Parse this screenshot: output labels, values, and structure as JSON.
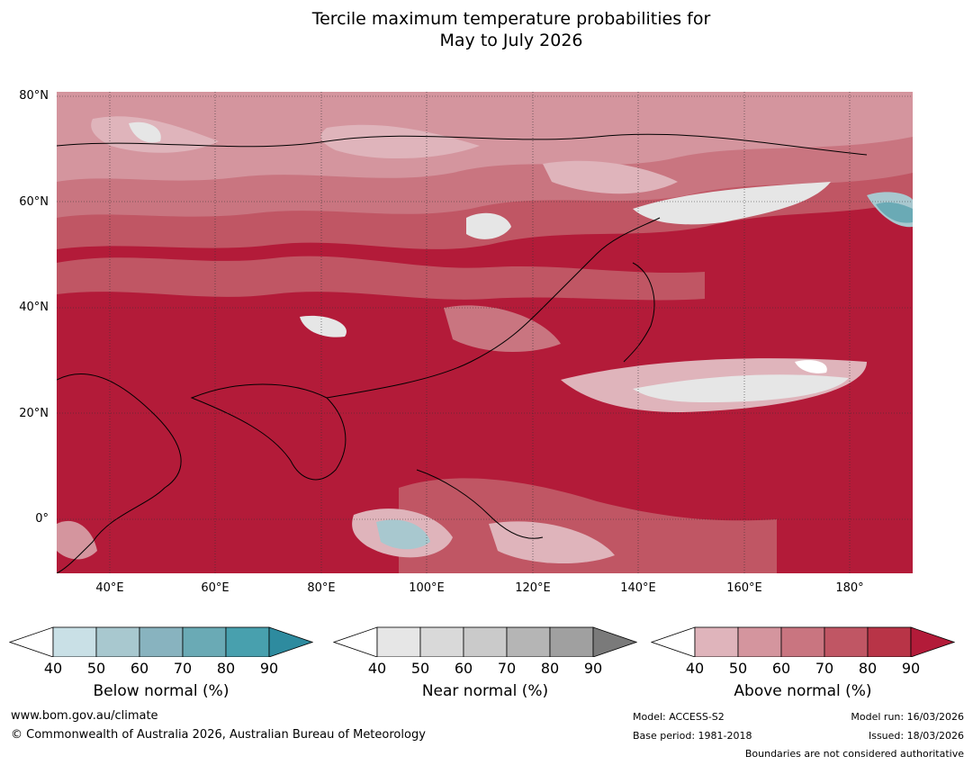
{
  "title_line1": "Tercile maximum temperature probabilities for",
  "title_line2": "May to July 2026",
  "lat_labels": [
    "80°N",
    "60°N",
    "40°N",
    "20°N",
    "0°"
  ],
  "lon_labels": [
    "40°E",
    "60°E",
    "80°E",
    "100°E",
    "120°E",
    "140°E",
    "160°E",
    "180°"
  ],
  "colorbars": [
    {
      "label": "Below normal (%)",
      "ticks": [
        "40",
        "50",
        "60",
        "70",
        "80",
        "90"
      ],
      "colors": [
        "#ffffff",
        "#c9e0e6",
        "#a8c8cf",
        "#88b3bf",
        "#6aaab5",
        "#48a0ae",
        "#2e8b9f"
      ]
    },
    {
      "label": "Near normal (%)",
      "ticks": [
        "40",
        "50",
        "60",
        "70",
        "80",
        "90"
      ],
      "colors": [
        "#ffffff",
        "#e6e6e6",
        "#d9d9d9",
        "#cacaca",
        "#b5b5b5",
        "#a0a0a0",
        "#7a7a7a"
      ]
    },
    {
      "label": "Above normal (%)",
      "ticks": [
        "40",
        "50",
        "60",
        "70",
        "80",
        "90"
      ],
      "colors": [
        "#ffffff",
        "#dfb4bb",
        "#d4959e",
        "#c97580",
        "#c05664",
        "#b83447",
        "#b31b39"
      ]
    }
  ],
  "footer": {
    "website": "www.bom.gov.au/climate",
    "copyright": "© Commonwealth of Australia 2026, Australian Bureau of Meteorology",
    "model": "Model: ACCESS-S2",
    "base_period": "Base period: 1981-2018",
    "model_run": "Model run: 16/03/2026",
    "issued": "Issued: 18/03/2026",
    "disclaimer": "Boundaries are not considered authoritative"
  }
}
